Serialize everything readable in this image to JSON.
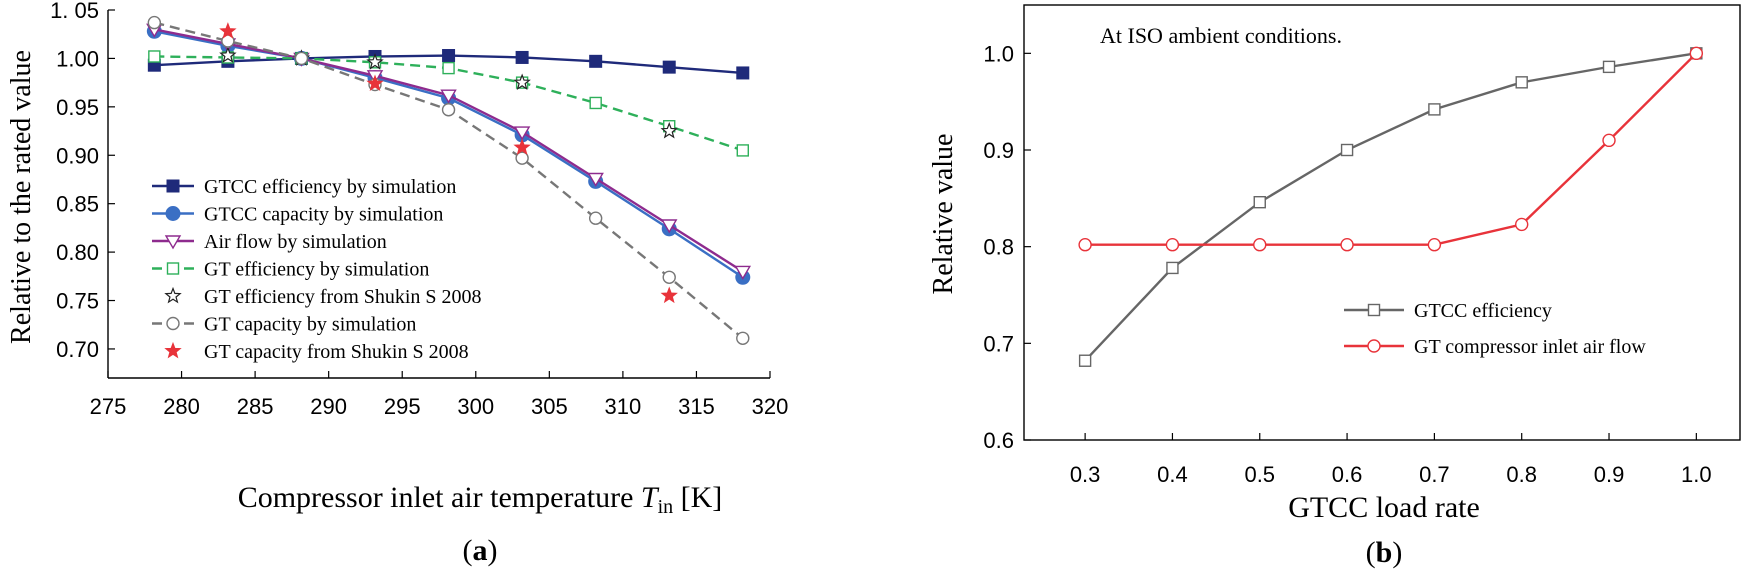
{
  "chart_data": [
    {
      "type": "line",
      "panel_label": "a",
      "xlabel": "Compressor inlet air temperature",
      "xlabel_var": "T",
      "xlabel_sub": "in",
      "xlabel_unit": "[K]",
      "ylabel": "Relative to the rated value",
      "xlim": [
        275,
        320
      ],
      "ylim": [
        0.67,
        1.05
      ],
      "xticks": [
        275,
        280,
        285,
        290,
        295,
        300,
        305,
        310,
        315,
        320
      ],
      "yticks": [
        0.7,
        0.75,
        0.8,
        0.85,
        0.9,
        0.95,
        1.0,
        1.05
      ],
      "ytick_labels": [
        "0.70",
        "0.75",
        "0.80",
        "0.85",
        "0.90",
        "0.95",
        "1.00",
        "1. 05"
      ],
      "series": [
        {
          "name": "GTCC efficiency by simulation",
          "color": "#1f2a7a",
          "dash": "",
          "marker": "square-filled",
          "x": [
            278.15,
            283.15,
            288.15,
            293.15,
            298.15,
            303.15,
            308.15,
            313.15,
            318.15
          ],
          "y": [
            0.993,
            0.997,
            1.0,
            1.002,
            1.003,
            1.001,
            0.997,
            0.991,
            0.985
          ]
        },
        {
          "name": "GTCC capacity by simulation",
          "color": "#3a6fc4",
          "dash": "",
          "marker": "circle-filled",
          "x": [
            278.15,
            283.15,
            288.15,
            293.15,
            298.15,
            303.15,
            308.15,
            313.15,
            318.15
          ],
          "y": [
            1.028,
            1.013,
            1.0,
            0.98,
            0.959,
            0.921,
            0.873,
            0.824,
            0.774
          ]
        },
        {
          "name": "Air flow by simulation",
          "color": "#8e2b8e",
          "dash": "",
          "marker": "triangle-down-open",
          "x": [
            278.15,
            283.15,
            288.15,
            293.15,
            298.15,
            303.15,
            308.15,
            313.15,
            318.15
          ],
          "y": [
            1.03,
            1.015,
            1.0,
            0.982,
            0.962,
            0.924,
            0.876,
            0.828,
            0.78
          ]
        },
        {
          "name": "GT efficiency by simulation",
          "color": "#2eb05a",
          "dash": "10 6",
          "marker": "square-open",
          "x": [
            278.15,
            283.15,
            288.15,
            293.15,
            298.15,
            303.15,
            308.15,
            313.15,
            318.15
          ],
          "y": [
            1.002,
            1.001,
            1.0,
            0.996,
            0.99,
            0.975,
            0.954,
            0.93,
            0.905
          ]
        },
        {
          "name": "GT efficiency from Shukin S 2008",
          "color": "#222222",
          "dash": "none",
          "marker": "star-open",
          "x": [
            283.15,
            288.15,
            293.15,
            303.15,
            313.15
          ],
          "y": [
            1.003,
            1.0,
            0.996,
            0.975,
            0.925
          ]
        },
        {
          "name": "GT capacity by simulation",
          "color": "#777777",
          "dash": "10 6",
          "marker": "circle-open",
          "x": [
            278.15,
            283.15,
            288.15,
            293.15,
            298.15,
            303.15,
            308.15,
            313.15,
            318.15
          ],
          "y": [
            1.037,
            1.018,
            1.0,
            0.973,
            0.947,
            0.897,
            0.835,
            0.774,
            0.711
          ]
        },
        {
          "name": "GT capacity from  Shukin S 2008",
          "color": "#e8333a",
          "dash": "none",
          "marker": "star-filled",
          "x": [
            283.15,
            293.15,
            303.15,
            313.15
          ],
          "y": [
            1.028,
            0.974,
            0.908,
            0.755
          ]
        }
      ]
    },
    {
      "type": "line",
      "panel_label": "b",
      "title": "At ISO ambient conditions.",
      "xlabel": "GTCC load rate",
      "ylabel": "Relative value",
      "xlim": [
        0.23,
        1.05
      ],
      "ylim": [
        0.6,
        1.05
      ],
      "xticks": [
        0.3,
        0.4,
        0.5,
        0.6,
        0.7,
        0.8,
        0.9,
        1.0
      ],
      "xtick_labels": [
        "0.3",
        "0.4",
        "0.5",
        "0.6",
        "0.7",
        "0.8",
        "0.9",
        "1.0"
      ],
      "yticks": [
        0.6,
        0.7,
        0.8,
        0.9,
        1.0
      ],
      "ytick_labels": [
        "0.6",
        "0.7",
        "0.8",
        "0.9",
        "1.0"
      ],
      "series": [
        {
          "name": "GTCC efficiency",
          "color": "#666666",
          "dash": "",
          "marker": "square-open",
          "x": [
            0.3,
            0.4,
            0.5,
            0.6,
            0.7,
            0.8,
            0.9,
            1.0
          ],
          "y": [
            0.682,
            0.778,
            0.846,
            0.9,
            0.942,
            0.97,
            0.986,
            1.0
          ]
        },
        {
          "name": "GT compressor inlet air flow",
          "color": "#e8333a",
          "dash": "",
          "marker": "circle-open",
          "x": [
            0.3,
            0.4,
            0.5,
            0.6,
            0.7,
            0.8,
            0.9,
            1.0
          ],
          "y": [
            0.802,
            0.802,
            0.802,
            0.802,
            0.802,
            0.823,
            0.91,
            1.0
          ]
        }
      ]
    }
  ]
}
